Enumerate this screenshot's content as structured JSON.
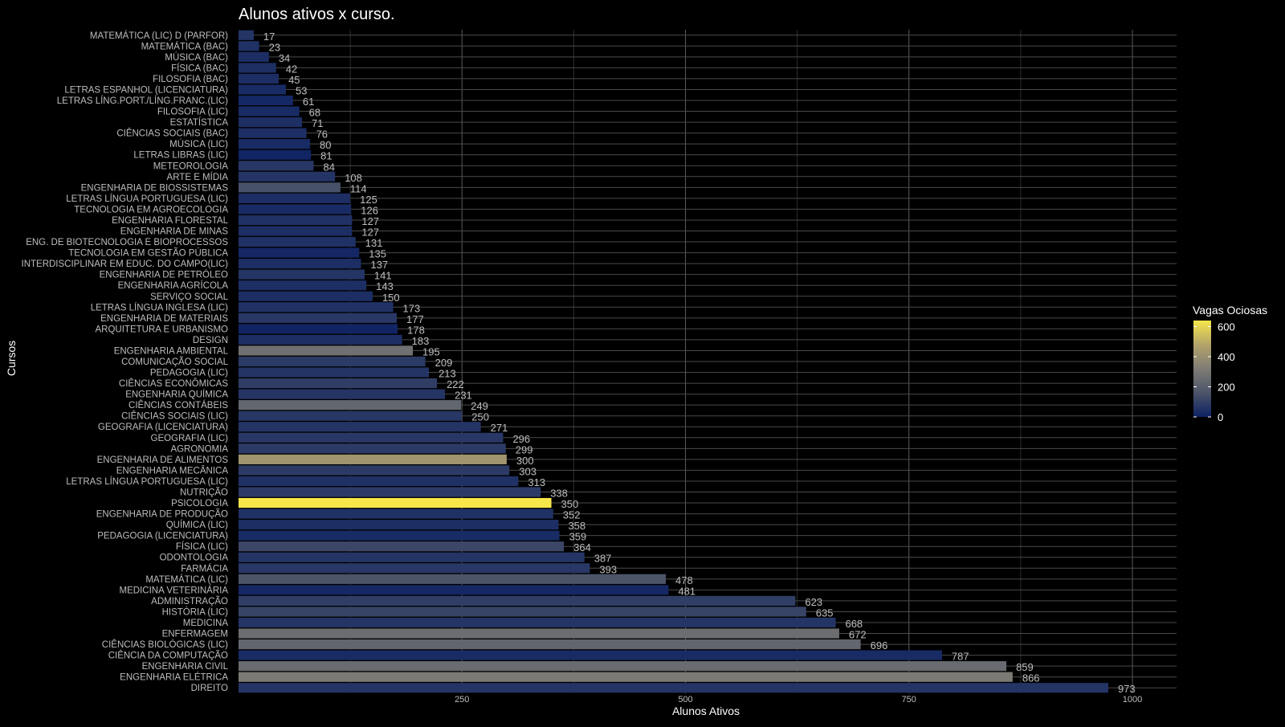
{
  "chart_data": {
    "type": "bar",
    "orientation": "horizontal",
    "title": "Alunos ativos x curso.",
    "xlabel": "Alunos Ativos",
    "ylabel": "Cursos",
    "xlim": [
      0,
      1050
    ],
    "xticks": [
      250,
      500,
      750,
      1000
    ],
    "grid": true,
    "legend": {
      "title": "Vagas Ociosas",
      "position": "right",
      "ticks": [
        0,
        200,
        400,
        600
      ],
      "range": [
        0,
        640
      ],
      "colors": [
        "#0d2163",
        "#4b5468",
        "#7f7c75",
        "#b3a46a",
        "#f7e74a"
      ]
    },
    "categories": [
      "MATEMÁTICA (LIC)  D (PARFOR)",
      "MATEMÁTICA (BAC)",
      "MÚSICA (BAC)",
      "FÍSICA (BAC)",
      "FILOSOFIA (BAC)",
      "LETRAS  ESPANHOL (LICENCIATURA)",
      "LETRAS  LÍNG.PORT./LÍNG.FRANC.(LIC)",
      "FILOSOFIA (LIC)",
      "ESTATÍSTICA",
      "CIÊNCIAS SOCIAIS (BAC)",
      "MÚSICA (LIC)",
      "LETRAS  LIBRAS (LIC)",
      "METEOROLOGIA",
      "ARTE E MÍDIA",
      "ENGENHARIA DE BIOSSISTEMAS",
      "LETRAS LÍNGUA PORTUGUESA (LIC)",
      "TECNOLOGIA EM AGROECOLOGIA",
      "ENGENHARIA FLORESTAL",
      "ENGENHARIA DE MINAS",
      "ENG. DE BIOTECNOLOGIA E BIOPROCESSOS",
      "TECNOLOGIA EM GESTÃO PÚBLICA",
      "INTERDISCIPLINAR EM EDUC. DO CAMPO(LIC)",
      "ENGENHARIA DE PETRÓLEO",
      "ENGENHARIA AGRÍCOLA",
      "SERVIÇO SOCIAL",
      "LETRAS  LÍNGUA INGLESA (LIC)",
      "ENGENHARIA DE MATERIAIS",
      "ARQUITETURA E URBANISMO",
      "DESIGN",
      "ENGENHARIA AMBIENTAL",
      "COMUNICAÇÃO SOCIAL",
      "PEDAGOGIA (LIC)",
      "CIÊNCIAS ECONÔMICAS",
      "ENGENHARIA QUÍMICA",
      "CIÊNCIAS CONTÁBEIS",
      "CIÊNCIAS SOCIAIS (LIC)",
      "GEOGRAFIA (LICENCIATURA)",
      "GEOGRAFIA (LIC)",
      "AGRONOMIA",
      "ENGENHARIA DE ALIMENTOS",
      "ENGENHARIA MECÂNICA",
      "LETRAS  LÍNGUA PORTUGUESA (LIC)",
      "NUTRIÇÃO",
      "PSICOLOGIA",
      "ENGENHARIA DE PRODUÇÃO",
      "QUÍMICA (LIC)",
      "PEDAGOGIA (LICENCIATURA)",
      "FÍSICA (LIC)",
      "ODONTOLOGIA",
      "FARMÁCIA",
      "MATEMÁTICA (LIC)",
      "MEDICINA VETERINÁRIA",
      "ADMINISTRAÇÃO",
      "HISTÓRIA (LIC)",
      "MEDICINA",
      "ENFERMAGEM",
      "CIÊNCIAS BIOLÓGICAS (LIC)",
      "CIÊNCIA DA COMPUTAÇÃO",
      "ENGENHARIA CIVIL",
      "ENGENHARIA ELÉTRICA",
      "DIREITO"
    ],
    "values": [
      17,
      23,
      34,
      42,
      45,
      53,
      61,
      68,
      71,
      76,
      80,
      81,
      84,
      108,
      114,
      125,
      126,
      127,
      127,
      131,
      135,
      137,
      141,
      143,
      150,
      173,
      177,
      178,
      183,
      195,
      209,
      213,
      222,
      231,
      249,
      250,
      271,
      296,
      299,
      300,
      303,
      313,
      338,
      350,
      352,
      358,
      359,
      364,
      387,
      393,
      478,
      481,
      623,
      635,
      668,
      672,
      696,
      787,
      859,
      866,
      973
    ],
    "vagas_ociosas": [
      60,
      50,
      40,
      45,
      40,
      30,
      20,
      30,
      45,
      40,
      30,
      10,
      70,
      60,
      150,
      40,
      30,
      50,
      40,
      50,
      20,
      40,
      60,
      40,
      40,
      50,
      70,
      10,
      40,
      270,
      80,
      60,
      90,
      60,
      230,
      70,
      60,
      70,
      80,
      420,
      80,
      50,
      80,
      640,
      50,
      40,
      30,
      120,
      60,
      70,
      160,
      20,
      90,
      110,
      60,
      260,
      230,
      30,
      250,
      310,
      60
    ]
  }
}
